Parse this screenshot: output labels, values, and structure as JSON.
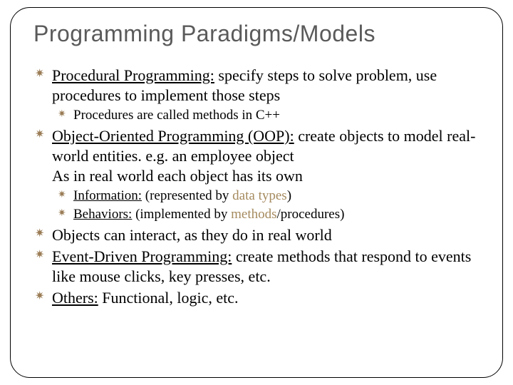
{
  "title": "Programming Paradigms/Models",
  "items": [
    {
      "lead": "Procedural Programming:",
      "rest": " specify steps to solve problem, use procedures to implement those steps",
      "sub": [
        {
          "text": "Procedures are  called methods in C++"
        }
      ]
    },
    {
      "lead": "Object-Oriented Programming (OOP):",
      "rest": " create objects to model real-world entities. e.g. an employee object",
      "extra": "As in real world each object has its own",
      "sub": [
        {
          "lead": "Information:",
          "rest1": " (represented by ",
          "hl": "data types",
          "rest2": ")"
        },
        {
          "lead": "Behaviors:",
          "rest1": " (implemented by ",
          "hl": "methods",
          "rest2": "/procedures)"
        }
      ]
    },
    {
      "text": "Objects can interact, as they do in real world"
    },
    {
      "lead": "Event-Driven Programming:",
      "rest": " create methods that respond to events like mouse clicks, key presses, etc."
    },
    {
      "lead": "Others:",
      "rest": " Functional, logic, etc."
    }
  ]
}
